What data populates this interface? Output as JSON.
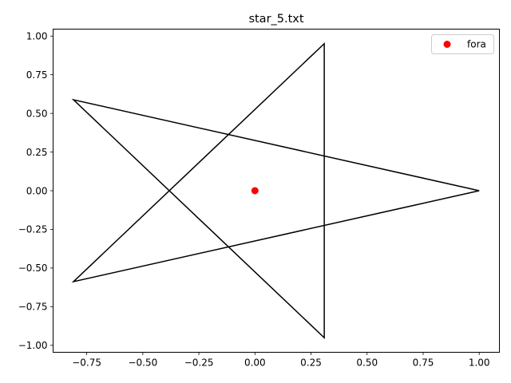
{
  "chart_data": {
    "type": "line",
    "title": "star_5.txt",
    "xlabel": "",
    "ylabel": "",
    "xlim": [
      -0.9,
      1.09
    ],
    "ylim": [
      -1.045,
      1.045
    ],
    "x_ticks": [
      -0.75,
      -0.5,
      -0.25,
      0.0,
      0.25,
      0.5,
      0.75,
      1.0
    ],
    "x_tick_labels": [
      "−0.75",
      "−0.50",
      "−0.25",
      "0.00",
      "0.25",
      "0.50",
      "0.75",
      "1.00"
    ],
    "y_ticks": [
      1.0,
      0.75,
      0.5,
      0.25,
      0.0,
      -0.25,
      -0.5,
      -0.75,
      -1.0
    ],
    "y_tick_labels": [
      "1.00",
      "0.75",
      "0.50",
      "0.25",
      "0.00",
      "−0.25",
      "−0.50",
      "−0.75",
      "−1.00"
    ],
    "grid": false,
    "legend_position": "top-right",
    "series": [
      {
        "type": "line",
        "color": "#000000",
        "points": [
          [
            1.0,
            0.0
          ],
          [
            -0.809,
            0.588
          ],
          [
            0.309,
            -0.951
          ],
          [
            0.309,
            0.951
          ],
          [
            -0.809,
            -0.588
          ],
          [
            1.0,
            0.0
          ]
        ]
      },
      {
        "type": "scatter",
        "name": "fora",
        "color": "#ff0000",
        "points": [
          [
            0.0,
            0.0
          ]
        ]
      }
    ]
  }
}
